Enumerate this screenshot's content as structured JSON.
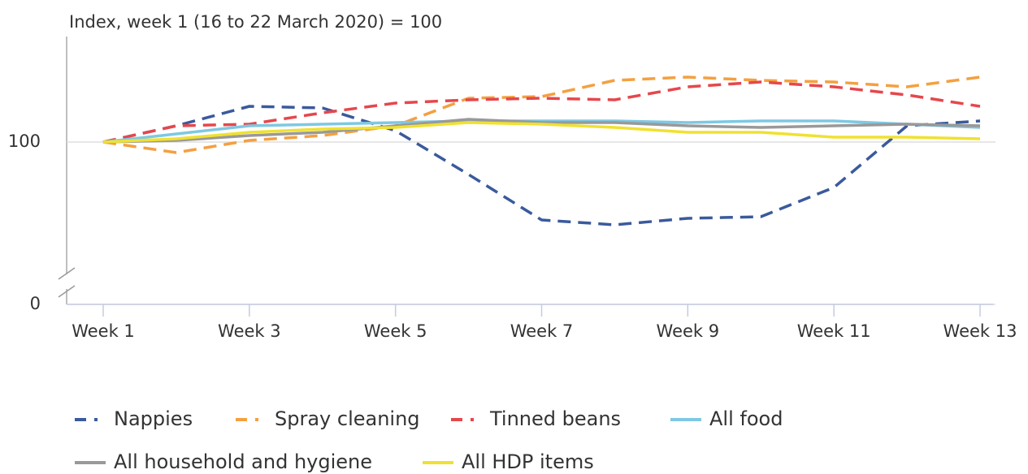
{
  "chart_data": {
    "type": "line",
    "subtitle": "Index, week 1 (16 to 22 March 2020) = 100",
    "categories": [
      "Week 1",
      null,
      "Week 3",
      null,
      "Week 5",
      null,
      "Week 7",
      null,
      "Week 9",
      null,
      "Week 11",
      null,
      "Week 13"
    ],
    "series": [
      {
        "name": "Nappies",
        "color": "#3a5a9c",
        "dashed": true,
        "values": [
          100,
          110,
          122,
          121,
          107,
          80,
          52,
          49,
          53,
          54,
          72,
          110,
          113
        ]
      },
      {
        "name": "Spray cleaning",
        "color": "#f4a040",
        "dashed": true,
        "values": [
          100,
          93.5,
          101,
          104,
          110,
          127,
          128,
          138,
          140,
          138,
          137,
          134,
          140
        ]
      },
      {
        "name": "Tinned beans",
        "color": "#e5474c",
        "dashed": true,
        "values": [
          100,
          110,
          111,
          118,
          124,
          126,
          127,
          126,
          134,
          137,
          134,
          129,
          122
        ]
      },
      {
        "name": "All food",
        "color": "#7ec8e3",
        "dashed": false,
        "values": [
          100,
          105,
          110,
          111,
          112,
          113,
          113,
          113,
          112,
          113,
          113,
          111,
          109
        ]
      },
      {
        "name": "All household and hygiene",
        "color": "#999999",
        "dashed": false,
        "values": [
          100,
          101,
          104,
          106,
          110,
          114,
          112,
          112,
          110,
          109,
          110,
          111,
          110
        ]
      },
      {
        "name": "All HDP items",
        "color": "#f0e130",
        "dashed": false,
        "values": [
          100,
          102,
          106,
          108,
          109,
          112,
          111,
          109,
          106,
          106,
          103,
          103,
          102
        ]
      }
    ],
    "ylim": [
      0,
      165
    ],
    "yticks": [
      0,
      100
    ],
    "grid": true
  }
}
